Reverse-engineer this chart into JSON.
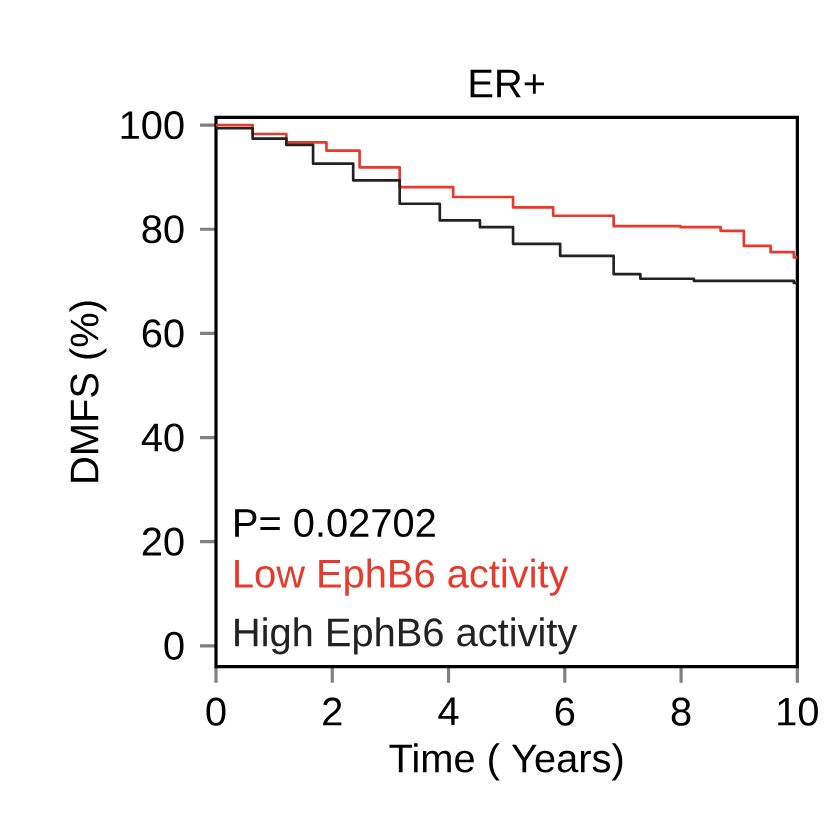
{
  "chart_data": {
    "type": "step",
    "title": "ER+",
    "xlabel": "Time ( Years)",
    "ylabel": "DMFS (%)",
    "xlim": [
      0,
      10
    ],
    "ylim": [
      -4,
      101.5
    ],
    "xticks": [
      0,
      2,
      4,
      6,
      8,
      10
    ],
    "yticks": [
      0,
      20,
      40,
      60,
      80,
      100
    ],
    "grid": false,
    "legend": "bottom left",
    "marker": "none",
    "line_style": "solid",
    "annotations": [
      "P= 0.02702"
    ],
    "series": [
      {
        "name": "Low EphB6 activity",
        "color": "#e8392b",
        "x": [
          0,
          0.63,
          1.21,
          1.9,
          2.47,
          3.16,
          4.08,
          5.11,
          5.8,
          6.84,
          7.99,
          8.68,
          9.08,
          9.54,
          9.94,
          10
        ],
        "values": [
          100,
          98.3,
          96.7,
          95.1,
          91.9,
          88.1,
          86.2,
          84.2,
          82.6,
          80.6,
          80.4,
          79.7,
          76.8,
          75.6,
          74.6,
          74.6
        ]
      },
      {
        "name": "High EphB6 activity",
        "color": "#222222",
        "x": [
          0,
          0.63,
          1.21,
          1.67,
          2.36,
          3.16,
          3.85,
          4.54,
          5.11,
          5.92,
          6.84,
          7.3,
          8.22,
          9.94,
          10
        ],
        "values": [
          99.4,
          97.4,
          96.2,
          92.6,
          89.4,
          84.9,
          81.7,
          80.4,
          77.2,
          74.9,
          71.4,
          70.5,
          70.1,
          69.7,
          69.7
        ]
      }
    ]
  }
}
